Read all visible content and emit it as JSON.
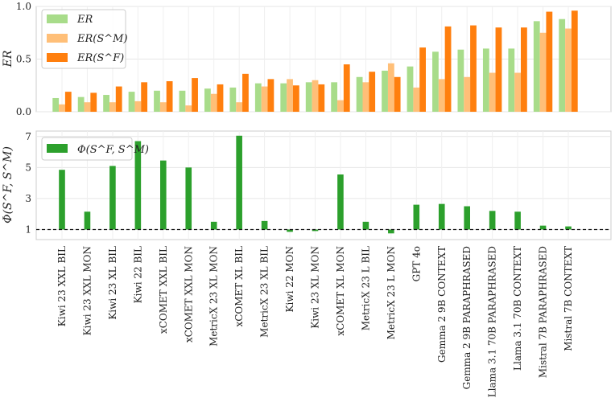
{
  "chart_data": [
    {
      "type": "bar",
      "ylabel": "ER",
      "ylim": [
        0,
        1.0
      ],
      "yticks": [
        "0.0",
        "0.5",
        "1.0"
      ],
      "legend_position": "top-left",
      "categories": [
        "Kiwi 23 XXL BIL",
        "Kiwi 23 XXL MON",
        "Kiwi 23 XL BIL",
        "Kiwi 22 BIL",
        "xCOMET XXL BIL",
        "xCOMET XXL MON",
        "MetricX 23 XL MON",
        "xCOMET XL BIL",
        "MetricX 23 XL BIL",
        "Kiwi 22 MON",
        "Kiwi 23 XL MON",
        "xCOMET XL MON",
        "MetricX 23 L BIL",
        "MetricX 23 L MON",
        "GPT 4o",
        "Gemma 2 9B CONTEXT",
        "Gemma 2 9B PARAPHRASED",
        "Llama 3.1 70B PARAPHRASED",
        "Llama 3.1 70B CONTEXT",
        "Mistral 7B PARAPHRASED",
        "Mistral 7B CONTEXT"
      ],
      "series": [
        {
          "name": "ER",
          "color": "#a8dc8a",
          "values": [
            0.13,
            0.14,
            0.16,
            0.19,
            0.2,
            0.2,
            0.22,
            0.23,
            0.27,
            0.27,
            0.28,
            0.28,
            0.33,
            0.39,
            0.43,
            0.57,
            0.59,
            0.6,
            0.6,
            0.86,
            0.88
          ]
        },
        {
          "name": "ER(S^M)",
          "color": "#ffbf78",
          "values": [
            0.07,
            0.09,
            0.09,
            0.1,
            0.09,
            0.06,
            0.17,
            0.09,
            0.24,
            0.31,
            0.3,
            0.11,
            0.28,
            0.46,
            0.23,
            0.31,
            0.33,
            0.37,
            0.37,
            0.75,
            0.79
          ]
        },
        {
          "name": "ER(S^F)",
          "color": "#ff7f0e",
          "values": [
            0.19,
            0.18,
            0.24,
            0.28,
            0.29,
            0.32,
            0.26,
            0.36,
            0.31,
            0.25,
            0.26,
            0.45,
            0.38,
            0.33,
            0.61,
            0.81,
            0.82,
            0.8,
            0.8,
            0.95,
            0.96
          ]
        }
      ],
      "legend": [
        "ER",
        "ER(S^M)",
        "ER(S^F)"
      ]
    },
    {
      "type": "bar",
      "ylabel": "Φ(S^F, S^M)",
      "ylim": [
        0.35,
        7.35
      ],
      "yticks": [
        "1",
        "3",
        "5",
        "7"
      ],
      "reference_line": 1,
      "legend_position": "top-left",
      "series": [
        {
          "name": "Φ(S^F, S^M)",
          "color": "#2ca02c",
          "values": [
            4.85,
            2.15,
            5.1,
            6.7,
            5.45,
            5.0,
            1.5,
            7.05,
            1.55,
            0.85,
            0.9,
            4.55,
            1.5,
            0.75,
            2.6,
            2.65,
            2.5,
            2.2,
            2.15,
            1.25,
            1.2
          ]
        }
      ],
      "legend": [
        "Φ(S^F, S^M)"
      ]
    }
  ]
}
